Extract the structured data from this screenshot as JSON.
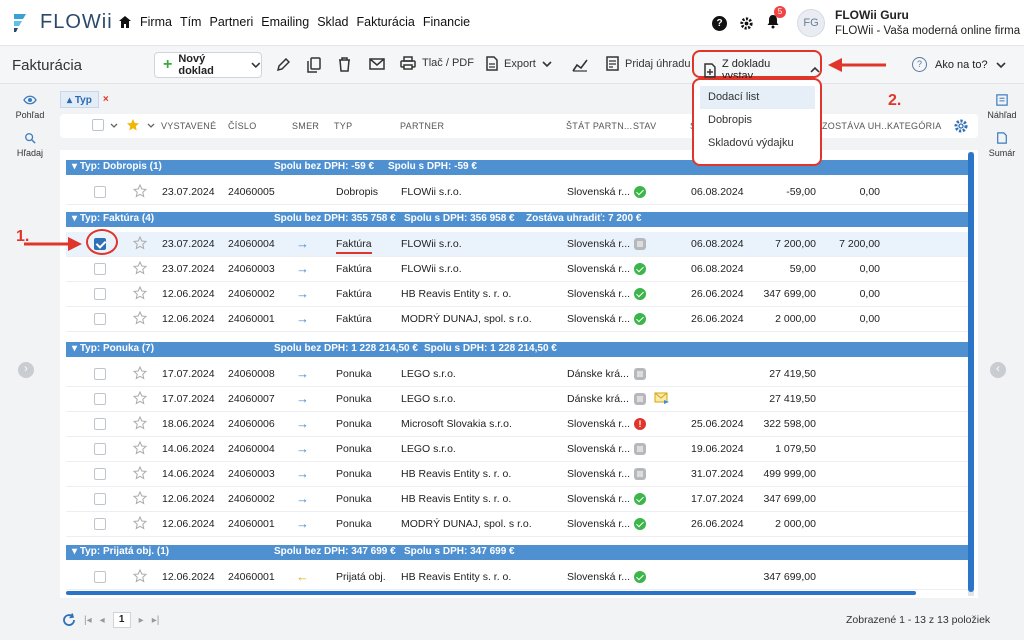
{
  "brand": {
    "name": "FLOWii"
  },
  "nav": {
    "items": [
      "Firma",
      "Tím",
      "Partneri",
      "Emailing",
      "Sklad",
      "Fakturácia",
      "Financie"
    ]
  },
  "notifications": {
    "count": "5"
  },
  "user": {
    "initials": "FG",
    "name": "FLOWii Guru",
    "company": "FLOWii - Vaša moderná online firma"
  },
  "toolbar": {
    "title": "Fakturácia",
    "new_doc": "Nový doklad",
    "print": "Tlač / PDF",
    "export": "Export",
    "pay": "Pridaj úhradu",
    "from_doc": "Z dokladu vystav",
    "help": "Ako na to?"
  },
  "dropdown": {
    "options": [
      "Dodací list",
      "Dobropis",
      "Skladovú výdajku"
    ]
  },
  "annotations": {
    "one": "1.",
    "two": "2."
  },
  "sidebar": {
    "view": "Pohľad",
    "search": "Hľadaj",
    "preview": "Náhľad",
    "summary": "Sumár"
  },
  "filter": {
    "chip": "Typ",
    "remove": "×"
  },
  "columns": {
    "issued": "VYSTAVENÉ",
    "number": "ČÍSLO",
    "direction": "SMER",
    "type": "TYP",
    "partner": "PARTNER",
    "country": "ŠTÁT PARTN...",
    "state": "STAV",
    "s": "S",
    "remaining": "ZOSTÁVA UH...",
    "category": "KATEGÓRIA"
  },
  "groups": [
    {
      "label": "Typ: Dobropis (1)",
      "net": "Spolu bez DPH: -59 €",
      "gross": "Spolu s DPH: -59 €",
      "extra": ""
    },
    {
      "label": "Typ: Faktúra (4)",
      "net": "Spolu bez DPH: 355 758 €",
      "gross": "Spolu s DPH: 356 958 €",
      "extra": "Zostáva uhradiť: 7 200 €"
    },
    {
      "label": "Typ: Ponuka (7)",
      "net": "Spolu bez DPH: 1 228 214,50 €",
      "gross": "Spolu s DPH: 1 228 214,50 €",
      "extra": ""
    },
    {
      "label": "Typ: Prijatá obj. (1)",
      "net": "Spolu bez DPH: 347 699 €",
      "gross": "Spolu s DPH: 347 699 €",
      "extra": ""
    }
  ],
  "rows": [
    {
      "date": "23.07.2024",
      "num": "24060005",
      "type": "Dobropis",
      "partner": "FLOWii s.r.o.",
      "country": "Slovenská r...",
      "due": "06.08.2024",
      "amount": "-59,00",
      "rem": "0,00"
    },
    {
      "date": "23.07.2024",
      "num": "24060004",
      "type": "Faktúra",
      "partner": "FLOWii s.r.o.",
      "country": "Slovenská r...",
      "due": "06.08.2024",
      "amount": "7 200,00",
      "rem": "7 200,00"
    },
    {
      "date": "23.07.2024",
      "num": "24060003",
      "type": "Faktúra",
      "partner": "FLOWii s.r.o.",
      "country": "Slovenská r...",
      "due": "06.08.2024",
      "amount": "59,00",
      "rem": "0,00"
    },
    {
      "date": "12.06.2024",
      "num": "24060002",
      "type": "Faktúra",
      "partner": "HB Reavis Entity s. r. o.",
      "country": "Slovenská r...",
      "due": "26.06.2024",
      "amount": "347 699,00",
      "rem": "0,00"
    },
    {
      "date": "12.06.2024",
      "num": "24060001",
      "type": "Faktúra",
      "partner": "MODRÝ DUNAJ, spol. s r.o.",
      "country": "Slovenská r...",
      "due": "26.06.2024",
      "amount": "2 000,00",
      "rem": "0,00"
    },
    {
      "date": "17.07.2024",
      "num": "24060008",
      "type": "Ponuka",
      "partner": "LEGO s.r.o.",
      "country": "Dánske krá...",
      "due": "",
      "amount": "27 419,50",
      "rem": ""
    },
    {
      "date": "17.07.2024",
      "num": "24060007",
      "type": "Ponuka",
      "partner": "LEGO s.r.o.",
      "country": "Dánske krá...",
      "due": "",
      "amount": "27 419,50",
      "rem": ""
    },
    {
      "date": "18.06.2024",
      "num": "24060006",
      "type": "Ponuka",
      "partner": "Microsoft Slovakia s.r.o.",
      "country": "Slovenská r...",
      "due": "25.06.2024",
      "amount": "322 598,00",
      "rem": ""
    },
    {
      "date": "14.06.2024",
      "num": "24060004",
      "type": "Ponuka",
      "partner": "LEGO s.r.o.",
      "country": "Slovenská r...",
      "due": "19.06.2024",
      "amount": "1 079,50",
      "rem": ""
    },
    {
      "date": "14.06.2024",
      "num": "24060003",
      "type": "Ponuka",
      "partner": "HB Reavis Entity s. r. o.",
      "country": "Slovenská r...",
      "due": "31.07.2024",
      "amount": "499 999,00",
      "rem": ""
    },
    {
      "date": "12.06.2024",
      "num": "24060002",
      "type": "Ponuka",
      "partner": "HB Reavis Entity s. r. o.",
      "country": "Slovenská r...",
      "due": "17.07.2024",
      "amount": "347 699,00",
      "rem": ""
    },
    {
      "date": "12.06.2024",
      "num": "24060001",
      "type": "Ponuka",
      "partner": "MODRÝ DUNAJ, spol. s r.o.",
      "country": "Slovenská r...",
      "due": "26.06.2024",
      "amount": "2 000,00",
      "rem": ""
    },
    {
      "date": "12.06.2024",
      "num": "24060001",
      "type": "Prijatá obj.",
      "partner": "HB Reavis Entity s. r. o.",
      "country": "Slovenská r...",
      "due": "",
      "amount": "347 699,00",
      "rem": ""
    }
  ],
  "pager": {
    "page": "1",
    "info": "Zobrazené 1 - 13 z 13 položiek"
  }
}
